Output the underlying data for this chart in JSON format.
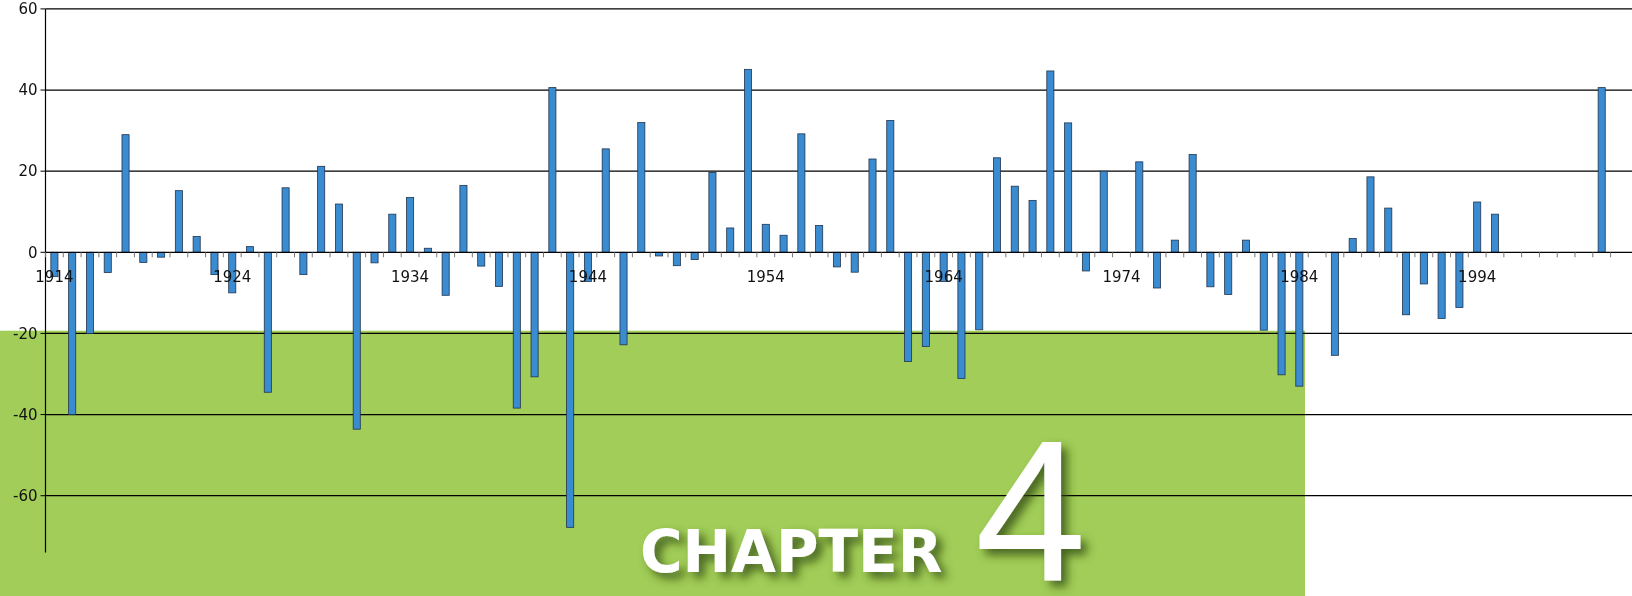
{
  "chart_data": {
    "type": "bar",
    "categories": [
      "1914",
      null,
      null,
      null,
      null,
      null,
      null,
      null,
      null,
      null,
      "1924",
      null,
      null,
      null,
      null,
      null,
      null,
      null,
      null,
      null,
      "1934",
      null,
      null,
      null,
      null,
      null,
      null,
      null,
      null,
      null,
      "1944",
      null,
      null,
      null,
      null,
      null,
      null,
      null,
      null,
      null,
      "1954",
      null,
      null,
      null,
      null,
      null,
      null,
      null,
      null,
      null,
      "1964",
      null,
      null,
      null,
      null,
      null,
      null,
      null,
      null,
      null,
      "1974",
      null,
      null,
      null,
      null,
      null,
      null,
      null,
      null,
      null,
      "1984",
      null,
      null,
      null,
      null,
      null,
      null,
      null,
      null,
      null,
      "1994",
      null,
      null,
      null,
      null,
      null,
      null,
      null
    ],
    "values": [
      -6,
      -40,
      -20,
      -5,
      29,
      -2.5,
      -1.2,
      15.2,
      3.9,
      -5.5,
      -10,
      1.4,
      -34.5,
      15.9,
      -5.5,
      21.2,
      11.9,
      -43.6,
      -2.6,
      9.4,
      13.5,
      1,
      -10.6,
      16.5,
      -3.4,
      -8.4,
      -38.4,
      -30.7,
      40.6,
      -67.8,
      -7.2,
      25.5,
      -22.8,
      32,
      -0.9,
      -3.3,
      -1.8,
      19.7,
      6,
      45.1,
      6.9,
      4.2,
      29.2,
      6.6,
      -3.6,
      -4.9,
      23,
      32.5,
      -26.9,
      -23.2,
      -7.2,
      -31.1,
      -19.1,
      23.3,
      16.3,
      12.8,
      44.7,
      31.9,
      -4.6,
      20,
      null,
      22.3,
      -8.8,
      3,
      24.1,
      -8.5,
      -10.4,
      3,
      -19.2,
      -30.2,
      -33,
      null,
      -25.4,
      3.4,
      18.6,
      10.9,
      -15.4,
      -7.8,
      -16.3,
      -13.6,
      12.4,
      9.4,
      null,
      null,
      null,
      null,
      null,
      40.6
    ],
    "color": "#3a8bd0",
    "ylim": [
      -74,
      60
    ],
    "yticks": [
      -60,
      -40,
      -20,
      0,
      20,
      40,
      60
    ],
    "grid": "y",
    "annotations": [
      "CHAPTER",
      "4"
    ]
  }
}
